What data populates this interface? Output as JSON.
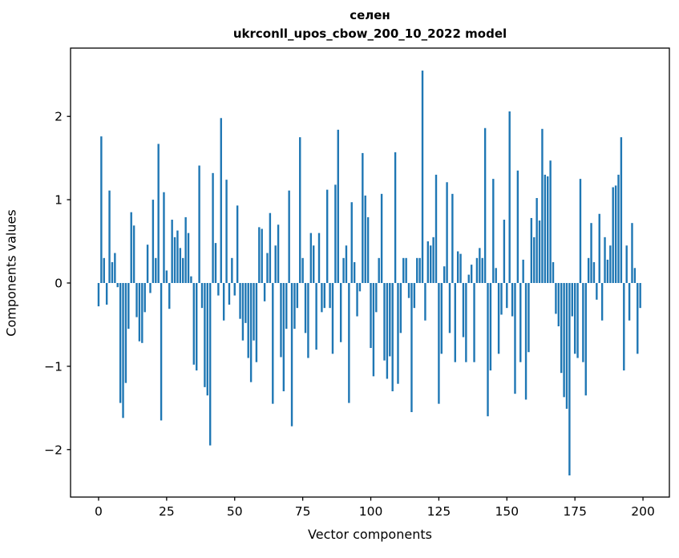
{
  "title": {
    "line1": "селен",
    "line2": "ukrconll_upos_cbow_200_10_2022 model"
  },
  "chart_data": {
    "type": "bar",
    "title": "селен",
    "subtitle": "ukrconll_upos_cbow_200_10_2022 model",
    "xlabel": "Vector components",
    "ylabel": "Components values",
    "bar_color": "#1f77b4",
    "axis_color": "#000000",
    "background_color": "#ffffff",
    "grid": false,
    "legend": false,
    "n_components": 200,
    "xlim": [
      -10.3,
      209.7
    ],
    "ylim": [
      -2.57,
      2.82
    ],
    "x_ticks": [
      0,
      25,
      50,
      75,
      100,
      125,
      150,
      175,
      200
    ],
    "x_tick_labels": [
      "0",
      "25",
      "50",
      "75",
      "100",
      "125",
      "150",
      "175",
      "200"
    ],
    "y_ticks": [
      -2,
      -1,
      0,
      1,
      2
    ],
    "y_tick_labels": [
      "−2",
      "−1",
      "0",
      "1",
      "2"
    ],
    "values": [
      -0.28,
      1.76,
      0.3,
      -0.26,
      1.11,
      0.25,
      0.36,
      -0.05,
      -1.44,
      -1.62,
      -1.2,
      -0.55,
      0.85,
      0.69,
      -0.41,
      -0.7,
      -0.72,
      -0.35,
      0.46,
      -0.12,
      1.0,
      0.3,
      1.67,
      -1.65,
      1.09,
      0.15,
      -0.31,
      0.76,
      0.55,
      0.63,
      0.42,
      0.3,
      0.79,
      0.6,
      0.08,
      -0.98,
      -1.05,
      1.41,
      -0.3,
      -1.25,
      -1.35,
      -1.95,
      1.32,
      0.48,
      -0.15,
      1.98,
      -0.45,
      1.24,
      -0.26,
      0.3,
      -0.15,
      0.93,
      -0.43,
      -0.69,
      -0.48,
      -0.9,
      -1.19,
      -0.69,
      -0.95,
      0.67,
      0.65,
      -0.22,
      0.36,
      0.84,
      -1.45,
      0.45,
      0.7,
      -0.89,
      -1.3,
      -0.55,
      1.11,
      -1.72,
      -0.55,
      -0.3,
      1.75,
      0.3,
      -0.6,
      -0.9,
      0.6,
      0.45,
      -0.8,
      0.6,
      -0.35,
      -0.3,
      1.12,
      -0.3,
      -0.85,
      1.18,
      1.84,
      -0.71,
      0.3,
      0.45,
      -1.44,
      0.97,
      0.25,
      -0.4,
      -0.1,
      1.56,
      1.05,
      0.79,
      -0.78,
      -1.12,
      -0.35,
      0.3,
      1.07,
      -0.93,
      -1.15,
      -0.88,
      -1.3,
      1.57,
      -1.21,
      -0.6,
      0.3,
      0.3,
      -0.18,
      -1.55,
      -0.3,
      0.3,
      0.3,
      2.55,
      -0.45,
      0.5,
      0.45,
      0.55,
      1.3,
      -1.45,
      -0.85,
      0.2,
      1.21,
      -0.6,
      1.07,
      -0.95,
      0.38,
      0.35,
      -0.65,
      -0.95,
      0.1,
      0.22,
      -0.95,
      0.3,
      0.42,
      0.3,
      1.86,
      -1.6,
      -1.05,
      1.25,
      0.18,
      -0.85,
      -0.38,
      0.76,
      -0.3,
      2.06,
      -0.4,
      -1.33,
      1.35,
      -0.95,
      0.28,
      -1.4,
      -0.83,
      0.78,
      0.55,
      1.02,
      0.75,
      1.85,
      1.3,
      1.28,
      1.47,
      0.25,
      -0.37,
      -0.52,
      -1.08,
      -1.37,
      -1.51,
      -2.31,
      -0.4,
      -0.85,
      -0.9,
      1.25,
      -0.95,
      -1.35,
      0.3,
      0.72,
      0.25,
      -0.2,
      0.83,
      -0.45,
      0.55,
      0.28,
      0.45,
      1.15,
      1.17,
      1.3,
      1.75,
      -1.05,
      0.45,
      -0.45,
      0.72,
      0.18,
      -0.85,
      -0.3
    ]
  }
}
